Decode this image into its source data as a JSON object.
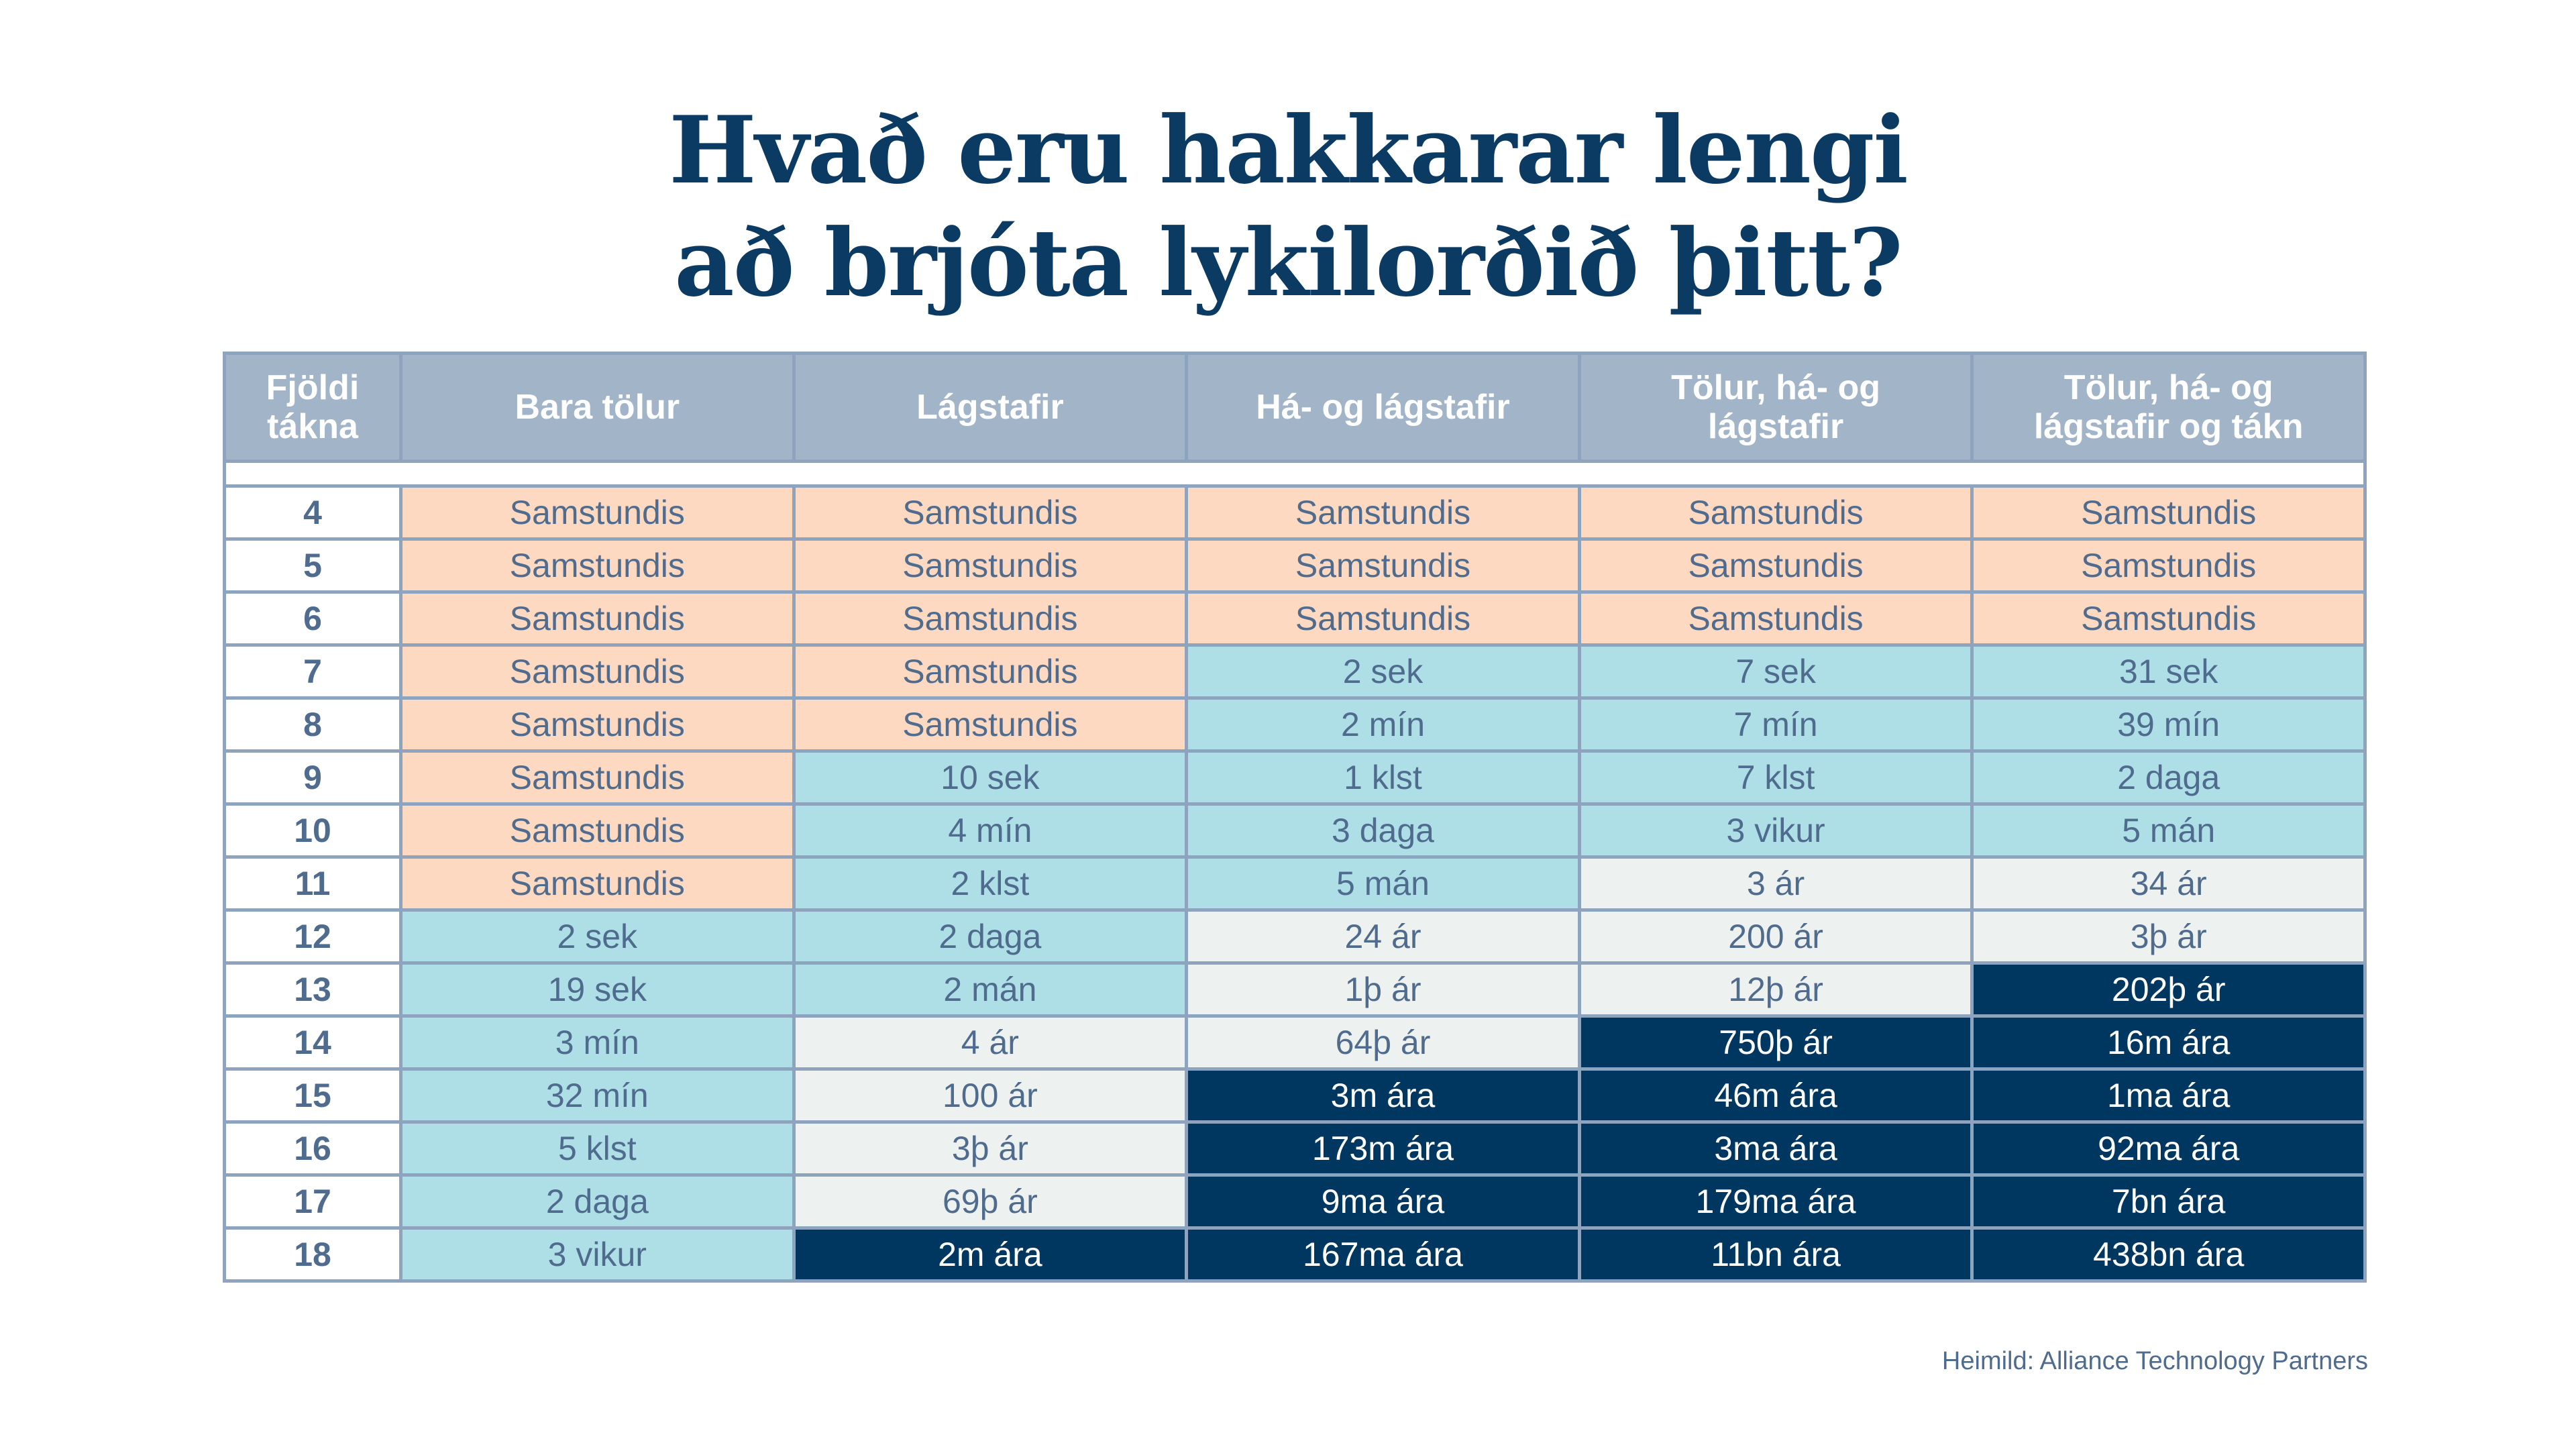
{
  "title": {
    "line1": "Hvað eru hakkarar lengi",
    "line2": "að brjóta lykilorðið þitt?"
  },
  "colors": {
    "instant": "#fdd9c1",
    "short": "#aedfe6",
    "long": "#edf1f0",
    "very_long": "#003761",
    "header": "#a2b4c8",
    "text": "#4f6b8e",
    "title": "#0b3a63"
  },
  "table": {
    "headers": [
      "Fjöldi\ntákna",
      "Bara tölur",
      "Lágstafir",
      "Há- og lágstafir",
      "Tölur, há- og\nlágstafir",
      "Tölur, há- og\nlágstafir og tákn"
    ],
    "rows": [
      {
        "chars": "4",
        "cells": [
          "Samstundis",
          "Samstundis",
          "Samstundis",
          "Samstundis",
          "Samstundis"
        ],
        "levels": [
          0,
          0,
          0,
          0,
          0
        ]
      },
      {
        "chars": "5",
        "cells": [
          "Samstundis",
          "Samstundis",
          "Samstundis",
          "Samstundis",
          "Samstundis"
        ],
        "levels": [
          0,
          0,
          0,
          0,
          0
        ]
      },
      {
        "chars": "6",
        "cells": [
          "Samstundis",
          "Samstundis",
          "Samstundis",
          "Samstundis",
          "Samstundis"
        ],
        "levels": [
          0,
          0,
          0,
          0,
          0
        ]
      },
      {
        "chars": "7",
        "cells": [
          "Samstundis",
          "Samstundis",
          "2 sek",
          "7 sek",
          "31 sek"
        ],
        "levels": [
          0,
          0,
          1,
          1,
          1
        ]
      },
      {
        "chars": "8",
        "cells": [
          "Samstundis",
          "Samstundis",
          "2 mín",
          "7 mín",
          "39 mín"
        ],
        "levels": [
          0,
          0,
          1,
          1,
          1
        ]
      },
      {
        "chars": "9",
        "cells": [
          "Samstundis",
          "10 sek",
          "1 klst",
          "7 klst",
          "2 daga"
        ],
        "levels": [
          0,
          1,
          1,
          1,
          1
        ]
      },
      {
        "chars": "10",
        "cells": [
          "Samstundis",
          "4 mín",
          "3 daga",
          "3 vikur",
          "5 mán"
        ],
        "levels": [
          0,
          1,
          1,
          1,
          1
        ]
      },
      {
        "chars": "11",
        "cells": [
          "Samstundis",
          "2 klst",
          "5 mán",
          "3 ár",
          "34 ár"
        ],
        "levels": [
          0,
          1,
          1,
          2,
          2
        ]
      },
      {
        "chars": "12",
        "cells": [
          "2 sek",
          "2 daga",
          "24 ár",
          "200 ár",
          "3þ ár"
        ],
        "levels": [
          1,
          1,
          2,
          2,
          2
        ]
      },
      {
        "chars": "13",
        "cells": [
          "19 sek",
          "2 mán",
          "1þ ár",
          "12þ ár",
          "202þ ár"
        ],
        "levels": [
          1,
          1,
          2,
          2,
          3
        ]
      },
      {
        "chars": "14",
        "cells": [
          "3 mín",
          "4 ár",
          "64þ ár",
          "750þ ár",
          "16m ára"
        ],
        "levels": [
          1,
          2,
          2,
          3,
          3
        ]
      },
      {
        "chars": "15",
        "cells": [
          "32 mín",
          "100 ár",
          "3m ára",
          "46m ára",
          "1ma ára"
        ],
        "levels": [
          1,
          2,
          3,
          3,
          3
        ]
      },
      {
        "chars": "16",
        "cells": [
          "5 klst",
          "3þ ár",
          "173m ára",
          "3ma ára",
          "92ma ára"
        ],
        "levels": [
          1,
          2,
          3,
          3,
          3
        ]
      },
      {
        "chars": "17",
        "cells": [
          "2 daga",
          "69þ ár",
          "9ma ára",
          "179ma ára",
          "7bn ára"
        ],
        "levels": [
          1,
          2,
          3,
          3,
          3
        ]
      },
      {
        "chars": "18",
        "cells": [
          "3 vikur",
          "2m ára",
          "167ma ára",
          "11bn ára",
          "438bn ára"
        ],
        "levels": [
          1,
          3,
          3,
          3,
          3
        ]
      }
    ]
  },
  "source": "Heimild: Alliance Technology Partners"
}
